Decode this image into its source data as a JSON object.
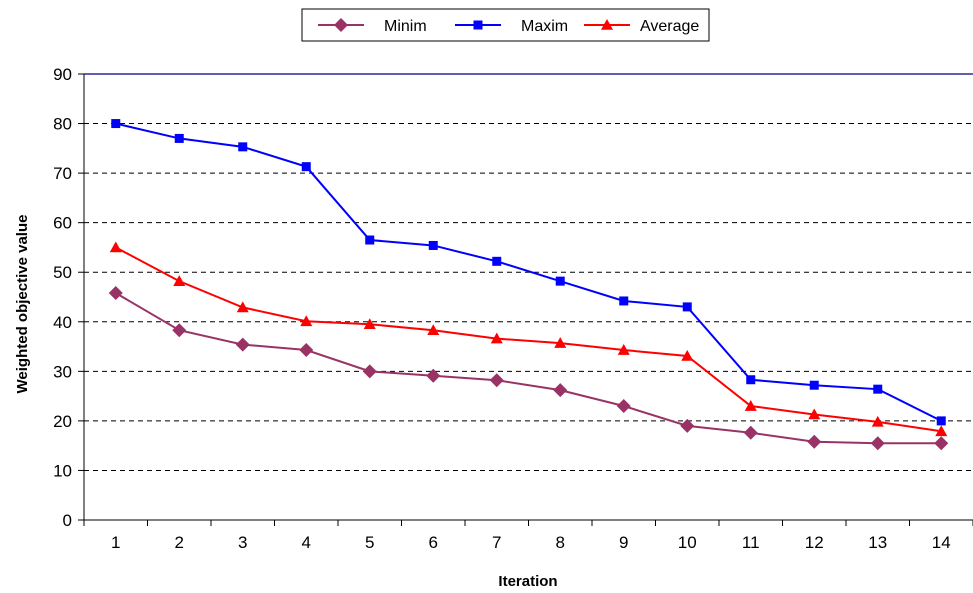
{
  "chart_data": {
    "type": "line",
    "title": "",
    "xlabel": "Iteration",
    "ylabel": "Weighted objective value",
    "categories": [
      "1",
      "2",
      "3",
      "4",
      "5",
      "6",
      "7",
      "8",
      "9",
      "10",
      "11",
      "12",
      "13",
      "14"
    ],
    "ylim": [
      0,
      90
    ],
    "yticks": [
      "0",
      "10",
      "20",
      "30",
      "40",
      "50",
      "60",
      "70",
      "80",
      "90"
    ],
    "grid": "horizontal-dashed",
    "legend_position": "top-center",
    "series": [
      {
        "name": "Minim",
        "color": "#993366",
        "marker": "diamond",
        "values": [
          45.8,
          38.3,
          35.4,
          34.3,
          30.0,
          29.1,
          28.2,
          26.2,
          23.0,
          19.0,
          17.6,
          15.8,
          15.5,
          15.5
        ]
      },
      {
        "name": "Maxim",
        "color": "#0000ff",
        "marker": "square",
        "values": [
          80.0,
          77.0,
          75.3,
          71.3,
          56.5,
          55.4,
          52.2,
          48.2,
          44.2,
          43.0,
          28.3,
          27.2,
          26.4,
          20.0
        ]
      },
      {
        "name": "Average",
        "color": "#ff0000",
        "marker": "triangle",
        "values": [
          55.0,
          48.2,
          42.9,
          40.1,
          39.5,
          38.3,
          36.6,
          35.7,
          34.3,
          33.1,
          23.0,
          21.3,
          19.8,
          17.9
        ]
      }
    ]
  }
}
